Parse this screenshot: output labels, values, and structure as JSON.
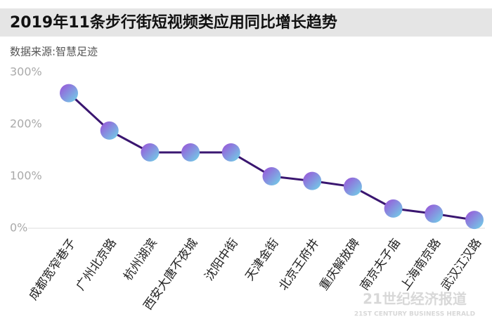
{
  "chart_data": {
    "type": "line",
    "title": "2019年11条步行街短视频类应用同比增长趋势",
    "subtitle": "数据来源:智慧足迹",
    "categories": [
      "成都宽窄巷子",
      "广州北京路",
      "杭州湖滨",
      "西安大唐不夜城",
      "沈阳中街",
      "天津金街",
      "北京王府井",
      "重庆解放碑",
      "南京夫子庙",
      "上海南京路",
      "武汉江汉路"
    ],
    "values": [
      260,
      188,
      146,
      146,
      146,
      100,
      91,
      80,
      38,
      28,
      16
    ],
    "color": "#3a1670",
    "ylim": [
      0,
      300
    ],
    "yticks": [
      {
        "value": 0,
        "label": "0%"
      },
      {
        "value": 100,
        "label": "100%"
      },
      {
        "value": 200,
        "label": "200%"
      },
      {
        "value": 300,
        "label": "300%"
      }
    ],
    "watermark": "21世纪经济报道",
    "watermark_sub": "21ST CENTURY BUSINESS HERALD"
  }
}
